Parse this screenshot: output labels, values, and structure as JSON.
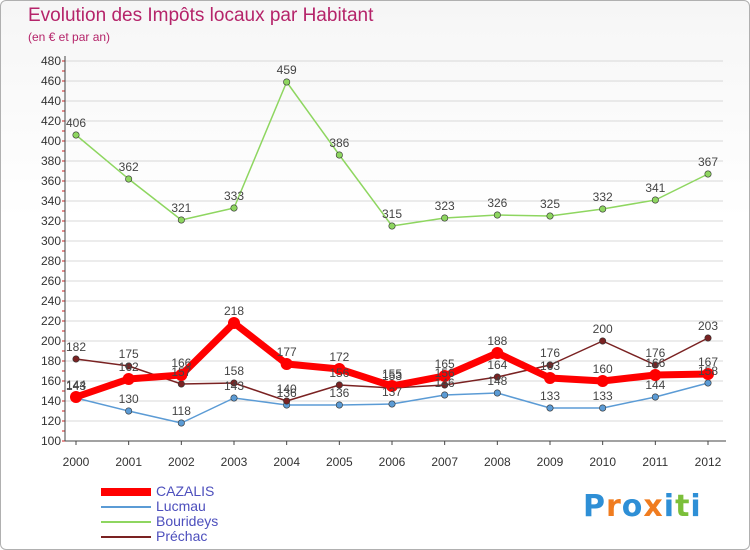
{
  "header": {
    "title": "Evolution des Impôts locaux par Habitant",
    "subtitle": "(en € et par an)"
  },
  "logo": {
    "text": "Proxiti",
    "colors": [
      "#2e8fd6",
      "#f07c1f",
      "#2e8fd6",
      "#f07c1f",
      "#2e8fd6",
      "#7bbf3a",
      "#2e8fd6"
    ]
  },
  "chart_data": {
    "type": "line",
    "title": "Evolution des Impôts locaux par Habitant",
    "subtitle": "(en € et par an)",
    "xlabel": "",
    "ylabel": "",
    "categories": [
      "2000",
      "2001",
      "2002",
      "2003",
      "2004",
      "2005",
      "2006",
      "2007",
      "2008",
      "2009",
      "2010",
      "2011",
      "2012"
    ],
    "ylim": [
      100,
      480
    ],
    "yticks": [
      100,
      120,
      140,
      160,
      180,
      200,
      220,
      240,
      260,
      280,
      300,
      320,
      340,
      360,
      380,
      400,
      420,
      440,
      460,
      480
    ],
    "grid": "horizontal",
    "legend_position": "bottom-left",
    "series": [
      {
        "name": "Lucmau",
        "color": "#5b9bd5",
        "values": [
          143,
          130,
          118,
          143,
          136,
          136,
          137,
          146,
          148,
          133,
          133,
          144,
          158
        ],
        "labels": [
          "143",
          "130",
          "118",
          "143",
          "136",
          "136",
          "137",
          "146",
          "148",
          "133",
          "133",
          "144",
          "158"
        ]
      },
      {
        "name": "Bourideys",
        "color": "#8ed660",
        "values": [
          406,
          362,
          321,
          333,
          459,
          386,
          315,
          323,
          326,
          325,
          332,
          341,
          367
        ],
        "labels": [
          "406",
          "362",
          "321",
          "333",
          "459",
          "386",
          "315",
          "323",
          "326",
          "325",
          "332",
          "341",
          "367"
        ]
      },
      {
        "name": "Préchac",
        "color": "#7a2222",
        "values": [
          182,
          175,
          157,
          158,
          140,
          156,
          153,
          156,
          164,
          176,
          200,
          176,
          203
        ],
        "labels": [
          "182",
          "175",
          "157",
          "158",
          "140",
          "156",
          "153",
          "156",
          "164",
          "176",
          "200",
          "176",
          "203"
        ]
      },
      {
        "name": "CAZALIS",
        "color": "#ff0000",
        "values": [
          144,
          162,
          166,
          218,
          177,
          172,
          155,
          165,
          188,
          163,
          160,
          166,
          167
        ],
        "labels": [
          "144",
          "162",
          "166",
          "218",
          "177",
          "172",
          "155",
          "165",
          "188",
          "163",
          "160",
          "166",
          "167"
        ]
      }
    ]
  }
}
